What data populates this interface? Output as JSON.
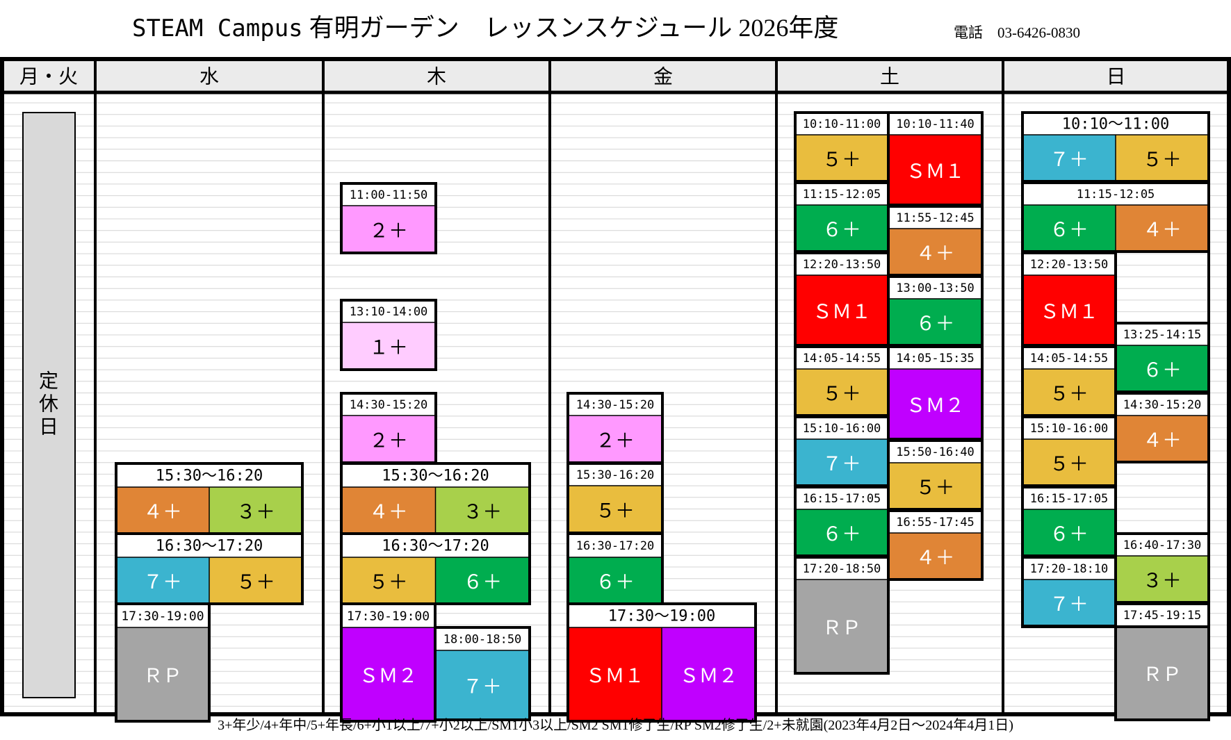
{
  "title": {
    "campus": "STEAM Campus",
    "text": "有明ガーデン　レッスンスケジュール 2026年度"
  },
  "phone": {
    "label": "電話",
    "number": "03-6426-0830"
  },
  "days": [
    "月・火",
    "水",
    "木",
    "金",
    "土",
    "日"
  ],
  "closed_label": "定休日",
  "colors": {
    "1+": "#ffccff",
    "2+": "#ff99ff",
    "3+": "#a8d04b",
    "4+": "#e08536",
    "5+": "#e9bd3e",
    "6+": "#00ad4f",
    "7+": "#3bb4cf",
    "SM1": "#ff0000",
    "SM2": "#c000ff",
    "RP": "#a5a5a5"
  },
  "lessons": {
    "wed": [
      {
        "time": "15:30〜16:20",
        "classes": [
          "4+",
          "3+"
        ],
        "labels": [
          "４＋",
          "３＋"
        ]
      },
      {
        "time": "16:30〜17:20",
        "classes": [
          "7+",
          "5+"
        ],
        "labels": [
          "７＋",
          "５＋"
        ]
      },
      {
        "time": "17:30-19:00",
        "classes": [
          "RP"
        ],
        "labels": [
          "ＲＰ"
        ]
      }
    ],
    "thu": [
      {
        "time": "11:00-11:50",
        "classes": [
          "2+"
        ],
        "labels": [
          "２＋"
        ]
      },
      {
        "time": "13:10-14:00",
        "classes": [
          "1+"
        ],
        "labels": [
          "１＋"
        ]
      },
      {
        "time": "14:30-15:20",
        "classes": [
          "2+"
        ],
        "labels": [
          "２＋"
        ]
      },
      {
        "time": "15:30〜16:20",
        "classes": [
          "4+",
          "3+"
        ],
        "labels": [
          "４＋",
          "３＋"
        ]
      },
      {
        "time": "16:30〜17:20",
        "classes": [
          "5+",
          "6+"
        ],
        "labels": [
          "５＋",
          "６＋"
        ]
      },
      {
        "time": "17:30-19:00",
        "classes": [
          "SM2"
        ],
        "labels": [
          "ＳＭ２"
        ]
      },
      {
        "time": "18:00-18:50",
        "classes": [
          "7+"
        ],
        "labels": [
          "７＋"
        ]
      }
    ],
    "fri": [
      {
        "time": "14:30-15:20",
        "classes": [
          "2+"
        ],
        "labels": [
          "２＋"
        ]
      },
      {
        "time": "15:30-16:20",
        "classes": [
          "5+"
        ],
        "labels": [
          "５＋"
        ]
      },
      {
        "time": "16:30-17:20",
        "classes": [
          "6+"
        ],
        "labels": [
          "６＋"
        ]
      },
      {
        "time": "17:30〜19:00",
        "classes": [
          "SM1",
          "SM2"
        ],
        "labels": [
          "ＳＭ１",
          "ＳＭ２"
        ]
      }
    ],
    "sat_left": [
      {
        "time": "10:10-11:00",
        "classes": [
          "5+"
        ],
        "labels": [
          "５＋"
        ]
      },
      {
        "time": "11:15-12:05",
        "classes": [
          "6+"
        ],
        "labels": [
          "６＋"
        ]
      },
      {
        "time": "12:20-13:50",
        "classes": [
          "SM1"
        ],
        "labels": [
          "ＳＭ１"
        ]
      },
      {
        "time": "14:05-14:55",
        "classes": [
          "5+"
        ],
        "labels": [
          "５＋"
        ]
      },
      {
        "time": "15:10-16:00",
        "classes": [
          "7+"
        ],
        "labels": [
          "７＋"
        ]
      },
      {
        "time": "16:15-17:05",
        "classes": [
          "6+"
        ],
        "labels": [
          "６＋"
        ]
      },
      {
        "time": "17:20-18:50",
        "classes": [
          "RP"
        ],
        "labels": [
          "ＲＰ"
        ]
      }
    ],
    "sat_right": [
      {
        "time": "10:10-11:40",
        "classes": [
          "SM1"
        ],
        "labels": [
          "ＳＭ１"
        ]
      },
      {
        "time": "11:55-12:45",
        "classes": [
          "4+"
        ],
        "labels": [
          "４＋"
        ]
      },
      {
        "time": "13:00-13:50",
        "classes": [
          "6+"
        ],
        "labels": [
          "６＋"
        ]
      },
      {
        "time": "14:05-15:35",
        "classes": [
          "SM2"
        ],
        "labels": [
          "ＳＭ２"
        ]
      },
      {
        "time": "15:50-16:40",
        "classes": [
          "5+"
        ],
        "labels": [
          "５＋"
        ]
      },
      {
        "time": "16:55-17:45",
        "classes": [
          "4+"
        ],
        "labels": [
          "４＋"
        ]
      }
    ],
    "sun": [
      {
        "time": "10:10〜11:00",
        "classes": [
          "7+",
          "5+"
        ],
        "labels": [
          "７＋",
          "５＋"
        ]
      },
      {
        "time": "11:15-12:05",
        "classes": [
          "6+",
          "4+"
        ],
        "labels": [
          "６＋",
          "４＋"
        ]
      },
      {
        "time": "12:20-13:50",
        "classes": [
          "SM1"
        ],
        "labels": [
          "ＳＭ１"
        ]
      },
      {
        "time": "13:25-14:15",
        "classes": [
          "6+"
        ],
        "labels": [
          "６＋"
        ]
      },
      {
        "time": "14:05-14:55",
        "classes": [
          "5+"
        ],
        "labels": [
          "５＋"
        ]
      },
      {
        "time": "14:30-15:20",
        "classes": [
          "4+"
        ],
        "labels": [
          "４＋"
        ]
      },
      {
        "time": "15:10-16:00",
        "classes": [
          "5+"
        ],
        "labels": [
          "５＋"
        ]
      },
      {
        "time": "16:15-17:05",
        "classes": [
          "6+"
        ],
        "labels": [
          "６＋"
        ]
      },
      {
        "time": "16:40-17:30",
        "classes": [
          "3+"
        ],
        "labels": [
          "３＋"
        ]
      },
      {
        "time": "17:20-18:10",
        "classes": [
          "7+"
        ],
        "labels": [
          "７＋"
        ]
      },
      {
        "time": "17:45-19:15",
        "classes": [
          "RP"
        ],
        "labels": [
          "ＲＰ"
        ]
      }
    ]
  },
  "footer": "3+年少/4+年中/5+年長/6+小1以上/7+小2以上/SM1小3以上/SM2 SM1修了生/RP SM2修了生/2+未就園(2023年4月2日〜2024年4月1日)"
}
